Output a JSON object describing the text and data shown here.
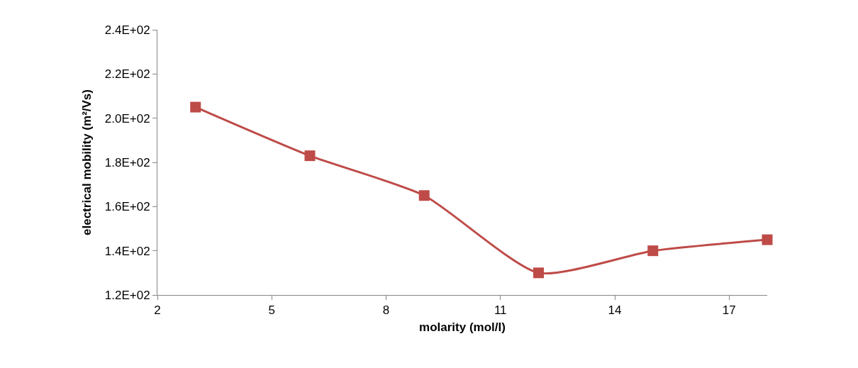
{
  "chart_data": {
    "type": "line",
    "xlabel": "molarity (mol/l)",
    "ylabel": "electrical mobility (m²/Vs)",
    "x": [
      3,
      6,
      9,
      12,
      15,
      18
    ],
    "series": [
      {
        "color": "#be4b48",
        "values": [
          205,
          183,
          165,
          130,
          140,
          145
        ]
      }
    ],
    "xlim": [
      2,
      18
    ],
    "xticks": [
      2,
      5,
      8,
      11,
      14,
      17
    ],
    "ylim": [
      120,
      240
    ],
    "yticks": [
      {
        "value": 120,
        "label": "1.2E+02"
      },
      {
        "value": 140,
        "label": "1.4E+02"
      },
      {
        "value": 160,
        "label": "1.6E+02"
      },
      {
        "value": 180,
        "label": "1.8E+02"
      },
      {
        "value": 200,
        "label": "2.0E+02"
      },
      {
        "value": 220,
        "label": "2.2E+02"
      },
      {
        "value": 240,
        "label": "2.4E+02"
      }
    ],
    "marker": "square",
    "line_style": "solid"
  }
}
